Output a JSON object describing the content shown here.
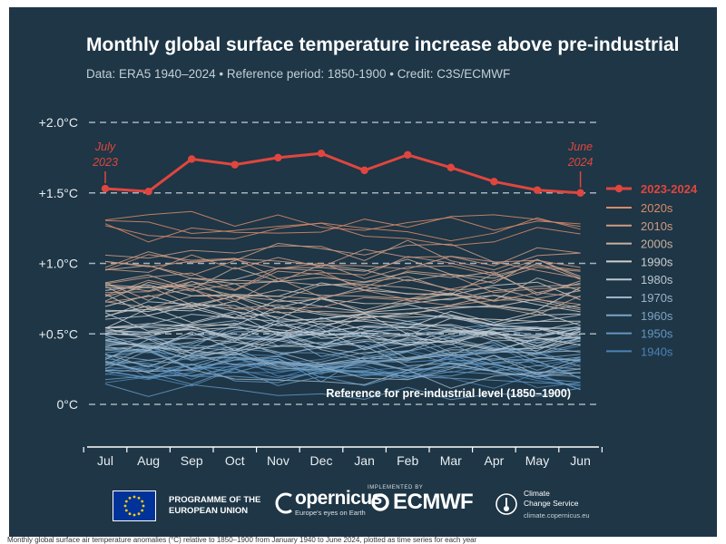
{
  "header": {
    "title": "Monthly global surface temperature increase above pre-industrial",
    "subtitle": "Data: ERA5 1940–2024 • Reference period: 1850-1900 • Credit: C3S/ECMWF"
  },
  "chart_data": {
    "type": "line",
    "title": "Monthly global surface temperature increase above pre-industrial",
    "xlabel": "",
    "ylabel": "",
    "categories": [
      "Jul",
      "Aug",
      "Sep",
      "Oct",
      "Nov",
      "Dec",
      "Jan",
      "Feb",
      "Mar",
      "Apr",
      "May",
      "Jun"
    ],
    "y_ticks": [
      {
        "value": 0,
        "label": "0°C"
      },
      {
        "value": 0.5,
        "label": "+0.5°C"
      },
      {
        "value": 1.0,
        "label": "+1.0°C"
      },
      {
        "value": 1.5,
        "label": "+1.5°C"
      },
      {
        "value": 2.0,
        "label": "+2.0°C"
      }
    ],
    "ylim": [
      -0.3,
      2.1
    ],
    "highlight": {
      "name": "2023-2024",
      "color": "#e0463e",
      "values": [
        1.53,
        1.51,
        1.74,
        1.7,
        1.75,
        1.78,
        1.66,
        1.77,
        1.68,
        1.58,
        1.52,
        1.5
      ]
    },
    "decades": [
      {
        "name": "2020s",
        "color": "#d98b6a",
        "count": 4,
        "base": [
          1.28,
          1.22
        ],
        "spread": 0.15
      },
      {
        "name": "2010s",
        "color": "#cf9a82",
        "count": 10,
        "base": [
          0.82,
          1.08
        ],
        "spread": 0.18
      },
      {
        "name": "2000s",
        "color": "#c9b0a0",
        "count": 10,
        "base": [
          0.72,
          0.9
        ],
        "spread": 0.16
      },
      {
        "name": "1990s",
        "color": "#cfcfcf",
        "count": 10,
        "base": [
          0.55,
          0.75
        ],
        "spread": 0.16
      },
      {
        "name": "1980s",
        "color": "#b9c7d2",
        "count": 10,
        "base": [
          0.45,
          0.62
        ],
        "spread": 0.16
      },
      {
        "name": "1970s",
        "color": "#9bb5c8",
        "count": 10,
        "base": [
          0.28,
          0.46
        ],
        "spread": 0.16
      },
      {
        "name": "1960s",
        "color": "#7ea4c3",
        "count": 10,
        "base": [
          0.3,
          0.42
        ],
        "spread": 0.16
      },
      {
        "name": "1950s",
        "color": "#6496c0",
        "count": 10,
        "base": [
          0.18,
          0.36
        ],
        "spread": 0.16
      },
      {
        "name": "1940s",
        "color": "#4d82b5",
        "count": 9,
        "base": [
          0.22,
          0.4
        ],
        "spread": 0.18
      }
    ],
    "reference_label": "Reference for pre-industrial level (1850–1900)",
    "annotations": [
      {
        "month": "Jul",
        "line1": "July",
        "line2": "2023"
      },
      {
        "month": "Jun",
        "line1": "June",
        "line2": "2024"
      }
    ],
    "legend": {
      "placement": "right"
    }
  },
  "footer": {
    "eu_line1": "PROGRAMME OF THE",
    "eu_line2": "EUROPEAN UNION",
    "copernicus": "opernicus",
    "copernicus_tagline": "Europe's eyes on Earth",
    "ecmwf_small": "IMPLEMENTED BY",
    "ecmwf": "ECMWF",
    "ccs_line1": "Climate",
    "ccs_line2": "Change Service",
    "ccs_url": "climate.copernicus.eu"
  },
  "caption": "Monthly global surface air temperature anomalies (°C) relative to 1850–1900 from January 1940 to June 2024, plotted as time series for each year"
}
